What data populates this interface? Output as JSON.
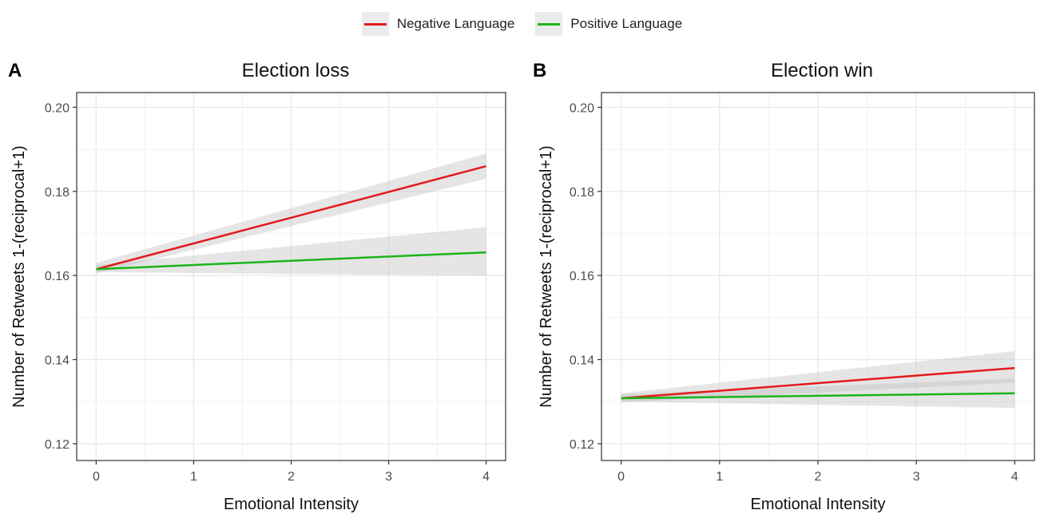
{
  "colors": {
    "negative": "#e41a1c",
    "positive": "#1bb51b",
    "band": "#bdbdbd",
    "grid": "#ebebeb"
  },
  "legend": [
    {
      "label": "Negative Language",
      "color": "#e41a1c"
    },
    {
      "label": "Positive Language",
      "color": "#1bb51b"
    }
  ],
  "chart_data": [
    {
      "type": "line",
      "tag": "A",
      "title": "Election loss",
      "xlabel": "Emotional Intensity",
      "ylabel": "Number of Retweets 1-(reciprocal+1)",
      "xlim": [
        -0.2,
        4.2
      ],
      "ylim": [
        0.116,
        0.2035
      ],
      "xticks": [
        0,
        1,
        2,
        3,
        4
      ],
      "yticks": [
        0.12,
        0.14,
        0.16,
        0.18,
        0.2
      ],
      "ytick_labels": [
        "0.12",
        "0.14",
        "0.16",
        "0.18",
        "0.20"
      ],
      "grid": true,
      "series": [
        {
          "name": "Negative Language",
          "x": [
            0,
            4
          ],
          "y": [
            0.1615,
            0.186
          ],
          "ci_lower": [
            0.1605,
            0.183
          ],
          "ci_upper": [
            0.163,
            0.189
          ]
        },
        {
          "name": "Positive Language",
          "x": [
            0,
            4
          ],
          "y": [
            0.1615,
            0.1655
          ],
          "ci_lower": [
            0.1608,
            0.16
          ],
          "ci_upper": [
            0.1625,
            0.1715
          ]
        }
      ]
    },
    {
      "type": "line",
      "tag": "B",
      "title": "Election win",
      "xlabel": "Emotional Intensity",
      "ylabel": "Number of Retweets 1-(reciprocal+1)",
      "xlim": [
        -0.2,
        4.2
      ],
      "ylim": [
        0.116,
        0.2035
      ],
      "xticks": [
        0,
        1,
        2,
        3,
        4
      ],
      "yticks": [
        0.12,
        0.14,
        0.16,
        0.18,
        0.2
      ],
      "ytick_labels": [
        "0.12",
        "0.14",
        "0.16",
        "0.18",
        "0.20"
      ],
      "grid": true,
      "series": [
        {
          "name": "Negative Language",
          "x": [
            0,
            4
          ],
          "y": [
            0.1308,
            0.138
          ],
          "ci_lower": [
            0.1298,
            0.1345
          ],
          "ci_upper": [
            0.132,
            0.142
          ]
        },
        {
          "name": "Positive Language",
          "x": [
            0,
            4
          ],
          "y": [
            0.1308,
            0.132
          ],
          "ci_lower": [
            0.13,
            0.1285
          ],
          "ci_upper": [
            0.1318,
            0.1355
          ]
        }
      ]
    }
  ]
}
